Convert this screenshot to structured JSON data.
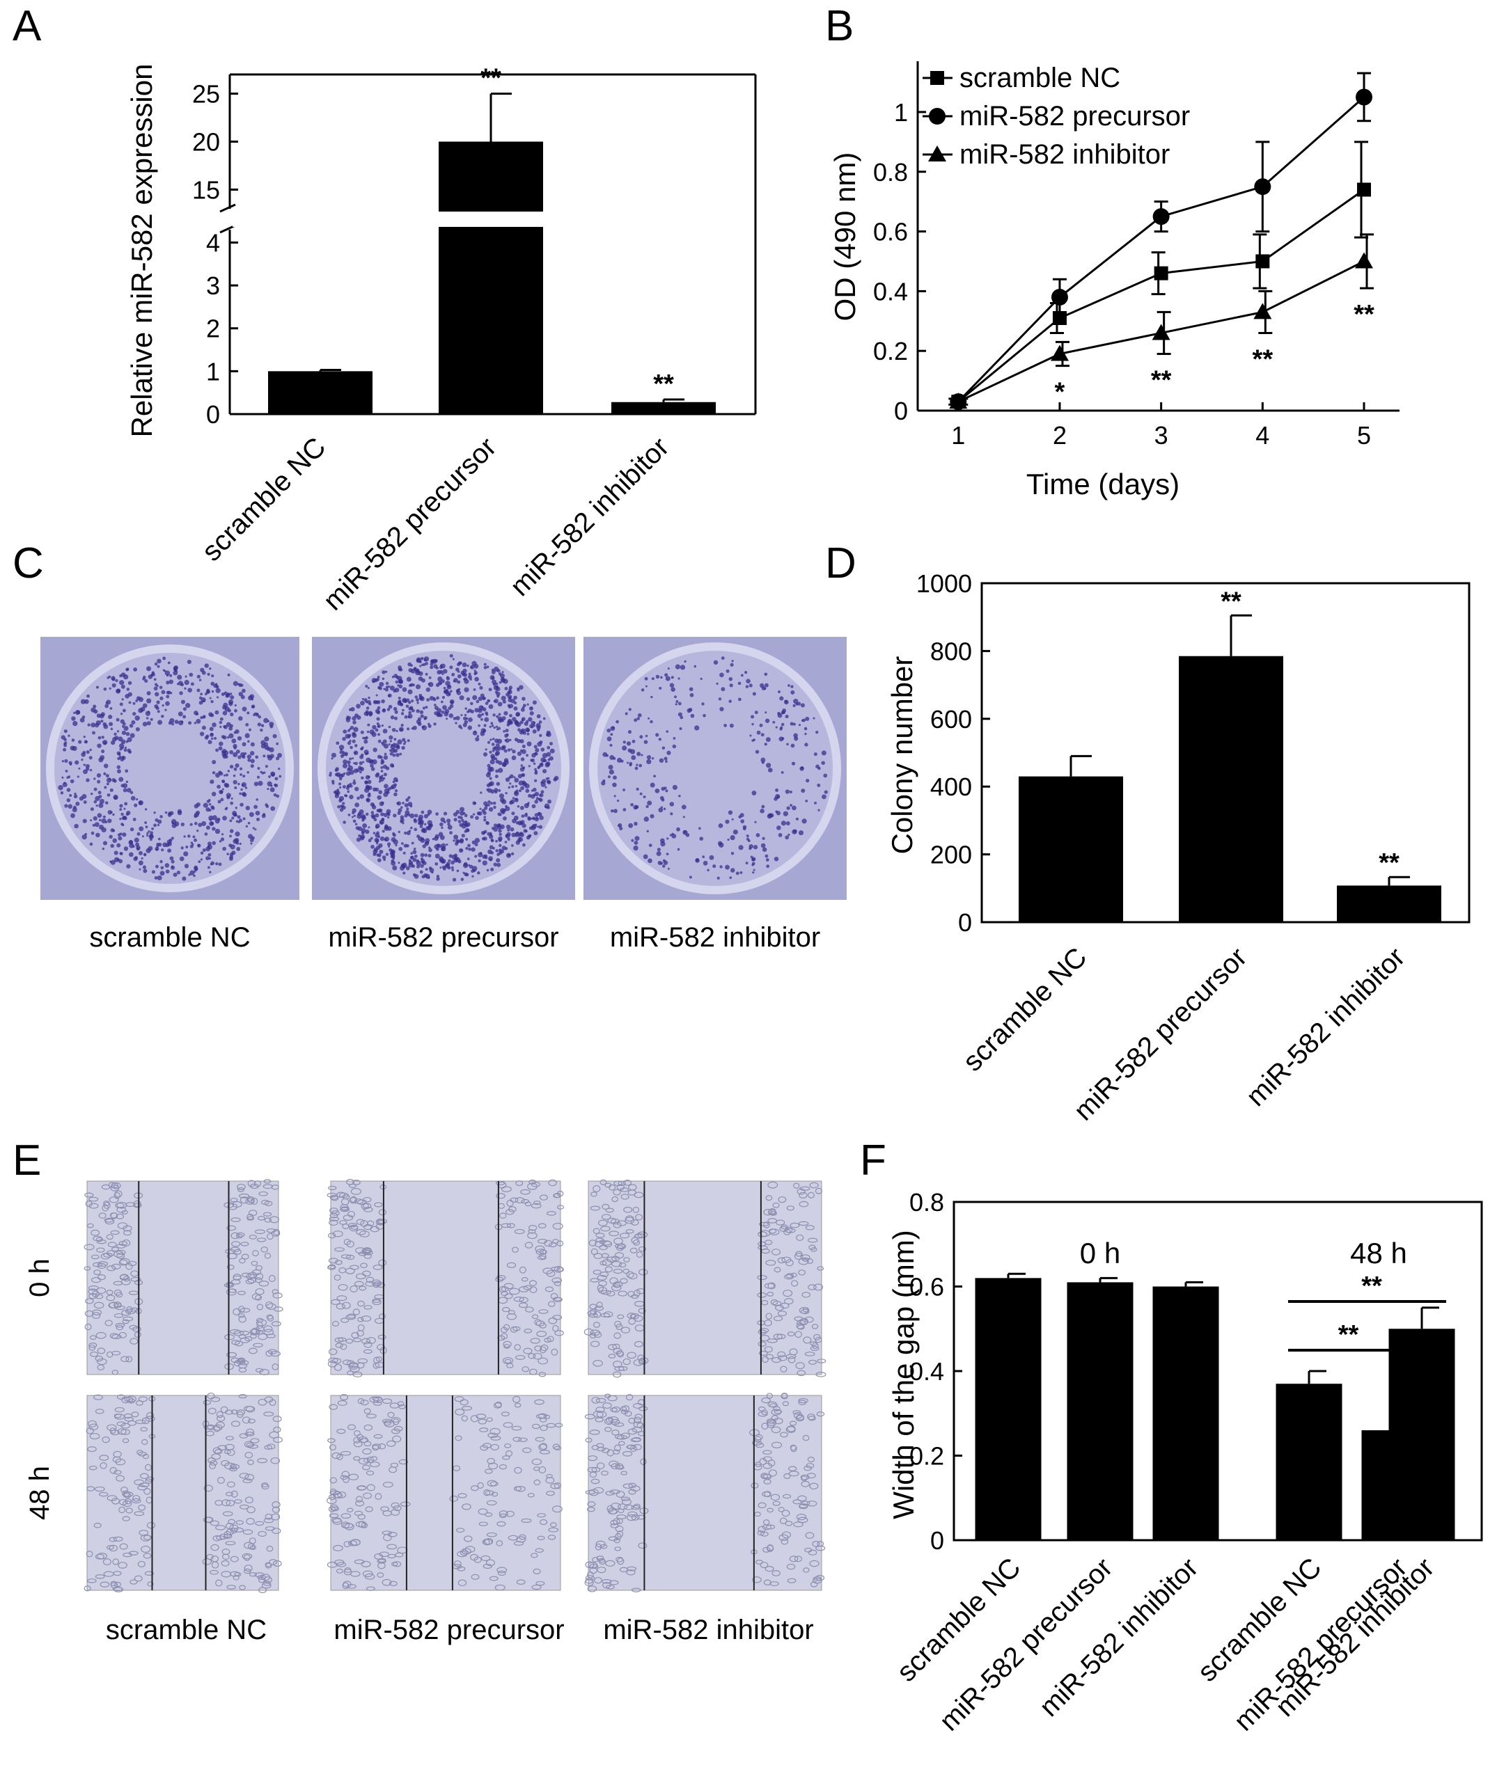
{
  "panels": {
    "A": "A",
    "B": "B",
    "C": "C",
    "D": "D",
    "E": "E",
    "F": "F"
  },
  "colors": {
    "bar": "#000000",
    "plate_bg": "#b7b6dc",
    "plate_rim": "#d6d5ee",
    "colony": "#3b2f8f",
    "micro_bg": "#cfd0e4",
    "cell": "#8d8fb0"
  },
  "chart_data": [
    {
      "panel": "A",
      "type": "bar",
      "ylabel": "Relative miR-582 expression",
      "categories": [
        "scramble NC",
        "miR-582 precursor",
        "miR-582 inhibitor"
      ],
      "values": [
        1.0,
        20.0,
        0.28
      ],
      "errors": [
        0.03,
        5.0,
        0.06
      ],
      "significance": [
        "",
        "**",
        "**"
      ],
      "axis_break": {
        "lower": [
          0,
          4.3
        ],
        "upper": [
          13,
          27
        ]
      },
      "yticks_lower": [
        "0",
        "1",
        "2",
        "3",
        "4"
      ],
      "yticks_upper": [
        "15",
        "20",
        "25"
      ]
    },
    {
      "panel": "B",
      "type": "line",
      "xlabel": "Time (days)",
      "ylabel": "OD  (490 nm)",
      "x": [
        1,
        2,
        3,
        4,
        5
      ],
      "xlim": [
        0.6,
        5.35
      ],
      "ylim": [
        0,
        1.17
      ],
      "xticks": [
        "1",
        "2",
        "3",
        "4",
        "5"
      ],
      "yticks": [
        "0",
        "0.2",
        "0.4",
        "0.6",
        "0.8",
        "1"
      ],
      "legend_position": "top-left",
      "series": [
        {
          "name": "scramble NC",
          "marker": "square",
          "values": [
            0.03,
            0.31,
            0.46,
            0.5,
            0.74
          ],
          "errors": [
            0.01,
            0.05,
            0.07,
            0.09,
            0.16
          ]
        },
        {
          "name": "miR-582 precursor",
          "marker": "circle",
          "values": [
            0.03,
            0.38,
            0.65,
            0.75,
            1.05
          ],
          "errors": [
            0.01,
            0.06,
            0.05,
            0.15,
            0.08
          ]
        },
        {
          "name": "miR-582 inhibitor",
          "marker": "triangle",
          "values": [
            0.03,
            0.19,
            0.26,
            0.33,
            0.5
          ],
          "errors": [
            0.01,
            0.04,
            0.07,
            0.07,
            0.09
          ]
        }
      ],
      "significance": [
        {
          "x": 2,
          "text": "*"
        },
        {
          "x": 3,
          "text": "**"
        },
        {
          "x": 4,
          "text": "**"
        },
        {
          "x": 5,
          "text": "**"
        }
      ]
    },
    {
      "panel": "D",
      "type": "bar",
      "ylabel": "Colony number",
      "categories": [
        "scramble NC",
        "miR-582 precursor",
        "miR-582 inhibitor"
      ],
      "values": [
        430,
        785,
        108
      ],
      "errors": [
        60,
        120,
        25
      ],
      "significance": [
        "",
        "**",
        "**"
      ],
      "ylim": [
        0,
        1000
      ],
      "yticks": [
        "0",
        "200",
        "400",
        "600",
        "800",
        "1000"
      ]
    },
    {
      "panel": "F",
      "type": "bar",
      "ylabel": "Width of the gap (mm)",
      "groups": [
        "0 h",
        "48 h"
      ],
      "categories": [
        "scramble NC",
        "miR-582 precursor",
        "miR-582 inhibitor",
        "scramble NC",
        "miR-582 precursor",
        "miR-582 inhibitor"
      ],
      "values": [
        0.62,
        0.61,
        0.6,
        0.37,
        0.26,
        0.5
      ],
      "errors": [
        0.01,
        0.01,
        0.01,
        0.03,
        0.04,
        0.05
      ],
      "ylim": [
        0,
        0.8
      ],
      "yticks": [
        "0",
        "0.2",
        "0.4",
        "0.6",
        "0.8"
      ],
      "brackets": [
        {
          "from": 3,
          "to": 4,
          "text": "**"
        },
        {
          "from": 3,
          "to": 5,
          "text": "**"
        }
      ]
    }
  ],
  "panel_C": {
    "labels": [
      "scramble NC",
      "miR-582 precursor",
      "miR-582 inhibitor"
    ],
    "colony_density": [
      0.55,
      0.9,
      0.25
    ]
  },
  "panel_E": {
    "row_labels": [
      "0 h",
      "48 h"
    ],
    "labels": [
      "scramble NC",
      "miR-582 precursor",
      "miR-582 inhibitor"
    ]
  }
}
